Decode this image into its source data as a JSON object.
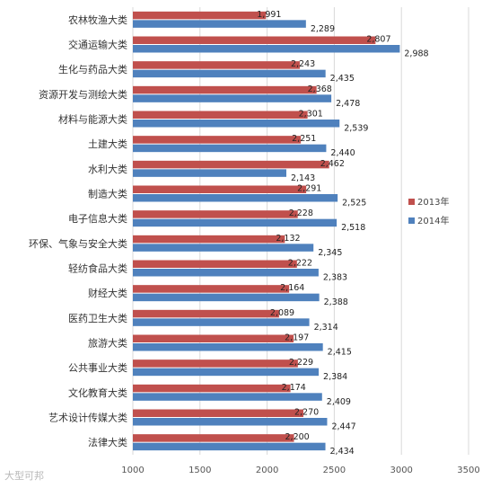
{
  "chart_data": {
    "type": "bar",
    "orientation": "horizontal",
    "categories": [
      "农林牧渔大类",
      "交通运输大类",
      "生化与药品大类",
      "资源开发与测绘大类",
      "材料与能源大类",
      "土建大类",
      "水利大类",
      "制造大类",
      "电子信息大类",
      "环保、气象与安全大类",
      "轻纺食品大类",
      "财经大类",
      "医药卫生大类",
      "旅游大类",
      "公共事业大类",
      "文化教育大类",
      "艺术设计传媒大类",
      "法律大类"
    ],
    "series": [
      {
        "name": "2013年",
        "color": "#c0504d",
        "values": [
          1991,
          2807,
          2243,
          2368,
          2301,
          2251,
          2462,
          2291,
          2228,
          2132,
          2222,
          2164,
          2089,
          2197,
          2229,
          2174,
          2270,
          2200
        ],
        "labels": [
          "1,991",
          "2,807",
          "2,243",
          "2,368",
          "2,301",
          "2,251",
          "2,462",
          "2,291",
          "2,228",
          "2,132",
          "2,222",
          "2,164",
          "2,089",
          "2,197",
          "2,229",
          "2,174",
          "2,270",
          "2,200"
        ]
      },
      {
        "name": "2014年",
        "color": "#4f81bd",
        "values": [
          2289,
          2988,
          2435,
          2478,
          2539,
          2440,
          2143,
          2525,
          2518,
          2345,
          2383,
          2388,
          2314,
          2415,
          2384,
          2409,
          2447,
          2434
        ],
        "labels": [
          "2,289",
          "2,988",
          "2,435",
          "2,478",
          "2,539",
          "2,440",
          "2,143",
          "2,525",
          "2,518",
          "2,345",
          "2,383",
          "2,388",
          "2,314",
          "2,415",
          "2,384",
          "2,409",
          "2,447",
          "2,434"
        ]
      }
    ],
    "xlim": [
      1000,
      3500
    ],
    "xticks": [
      "1000",
      "1500",
      "2000",
      "2500",
      "3000",
      "3500"
    ],
    "grid": true,
    "legend_position": "right"
  },
  "watermark": "大型可邦"
}
